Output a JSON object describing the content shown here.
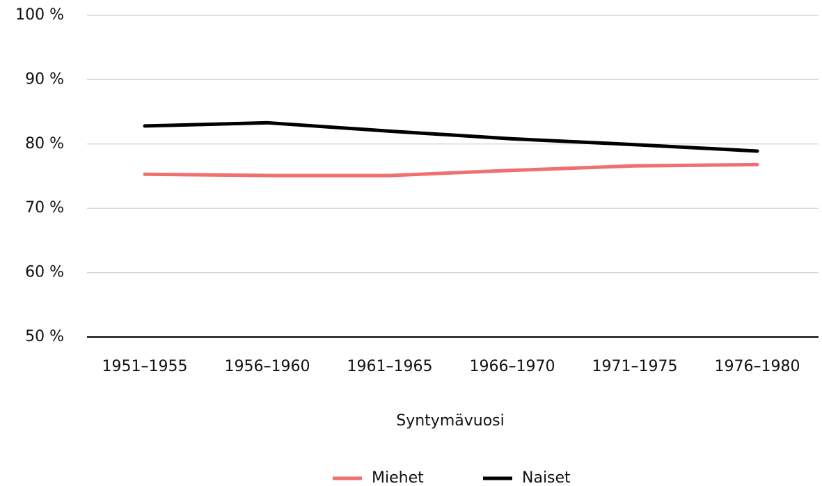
{
  "chart_data": {
    "type": "line",
    "x_label": "Syntymävuosi",
    "categories": [
      "1951–1955",
      "1956–1960",
      "1961–1965",
      "1966–1970",
      "1971–1975",
      "1976–1980"
    ],
    "series": [
      {
        "name": "Miehet",
        "color": "#f07070",
        "values": [
          75.3,
          75.1,
          75.1,
          75.9,
          76.6,
          76.8
        ]
      },
      {
        "name": "Naiset",
        "color": "#000000",
        "values": [
          82.8,
          83.3,
          82.0,
          80.8,
          79.9,
          78.9
        ]
      }
    ],
    "ylim": [
      50,
      100
    ],
    "yticks": [
      {
        "value": 50,
        "label": "50 %"
      },
      {
        "value": 60,
        "label": "60 %"
      },
      {
        "value": 70,
        "label": "70 %"
      },
      {
        "value": 80,
        "label": "80 %"
      },
      {
        "value": 90,
        "label": "90 %"
      },
      {
        "value": 100,
        "label": "100 %"
      }
    ],
    "grid": true,
    "legend": "bottom"
  }
}
